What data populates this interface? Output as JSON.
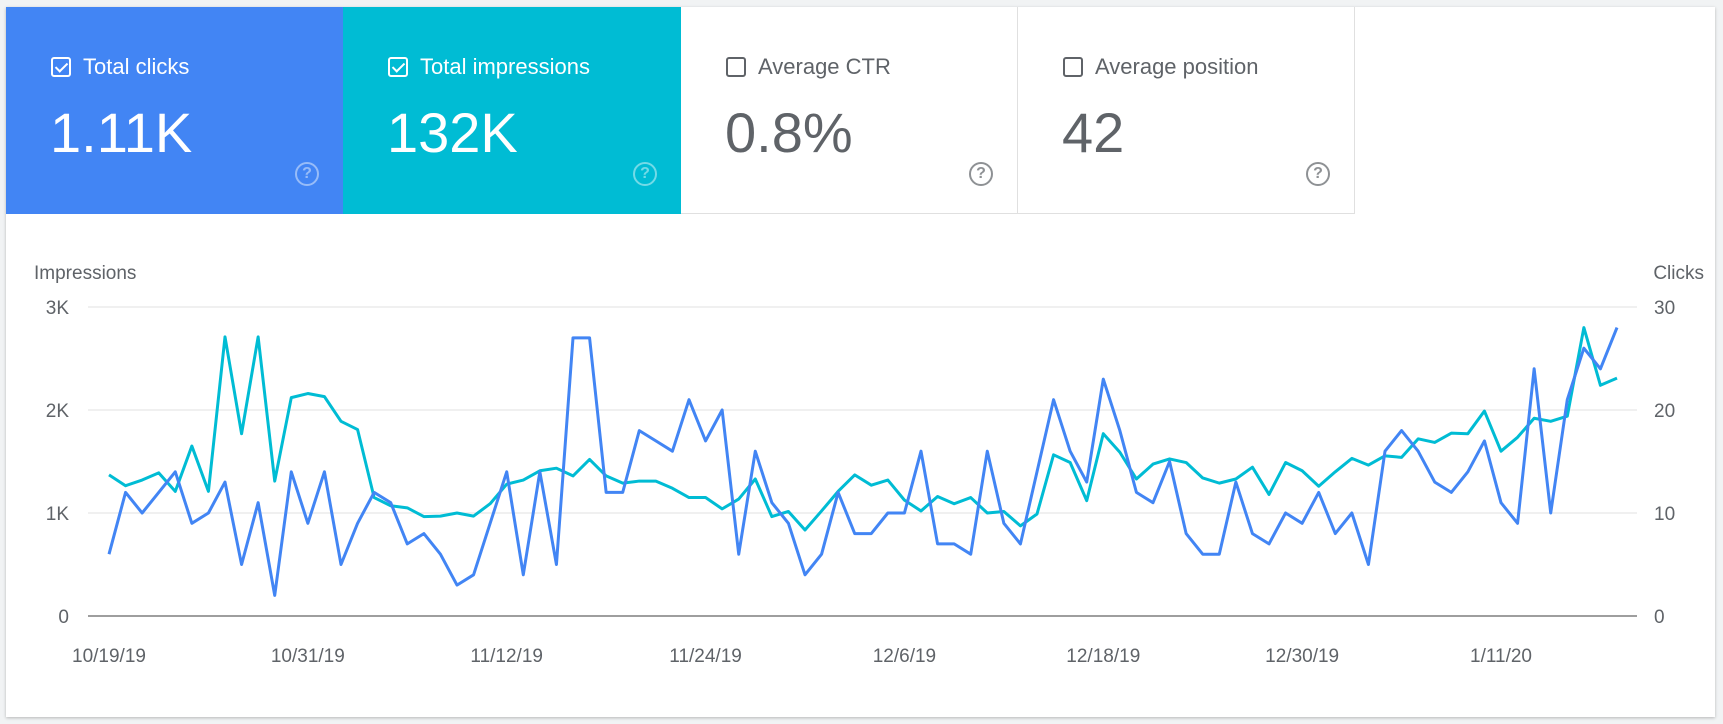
{
  "metrics": [
    {
      "label": "Total clicks",
      "value": "1.11K",
      "checked": true,
      "color": "#4285f4"
    },
    {
      "label": "Total impressions",
      "value": "132K",
      "checked": true,
      "color": "#00bcd4"
    },
    {
      "label": "Average CTR",
      "value": "0.8%",
      "checked": false
    },
    {
      "label": "Average position",
      "value": "42",
      "checked": false
    }
  ],
  "chart_data": {
    "type": "line",
    "left_axis": {
      "title": "Impressions",
      "ticks": [
        "0",
        "1K",
        "2K",
        "3K"
      ],
      "range": [
        0,
        3000
      ]
    },
    "right_axis": {
      "title": "Clicks",
      "ticks": [
        "0",
        "10",
        "20",
        "30"
      ],
      "range": [
        0,
        30
      ]
    },
    "x_tick_labels": [
      "10/19/19",
      "10/31/19",
      "11/12/19",
      "11/24/19",
      "12/6/19",
      "12/18/19",
      "12/30/19",
      "1/11/20"
    ],
    "x_start": "10/19/19",
    "x_end": "1/18/20",
    "grid": true,
    "series": [
      {
        "name": "Impressions",
        "axis": "left",
        "color": "#00bcd4",
        "values": [
          1370,
          1265,
          1320,
          1390,
          1210,
          1650,
          1210,
          2710,
          1770,
          2710,
          1310,
          2120,
          2160,
          2130,
          1890,
          1810,
          1150,
          1070,
          1050,
          965,
          970,
          1000,
          970,
          1090,
          1280,
          1320,
          1410,
          1435,
          1360,
          1520,
          1360,
          1290,
          1310,
          1310,
          1240,
          1150,
          1150,
          1040,
          1135,
          1330,
          965,
          1015,
          835,
          1020,
          1210,
          1370,
          1270,
          1320,
          1125,
          1020,
          1160,
          1090,
          1150,
          1000,
          1015,
          875,
          990,
          1565,
          1490,
          1120,
          1770,
          1590,
          1330,
          1475,
          1525,
          1490,
          1340,
          1290,
          1330,
          1445,
          1180,
          1490,
          1410,
          1260,
          1400,
          1530,
          1465,
          1555,
          1540,
          1720,
          1685,
          1775,
          1770,
          1990,
          1600,
          1735,
          1920,
          1890,
          1940,
          2800,
          2240,
          2310
        ]
      },
      {
        "name": "Clicks",
        "axis": "right",
        "color": "#4285f4",
        "values": [
          6,
          12,
          10,
          12,
          14,
          9,
          10,
          13,
          5,
          11,
          2,
          14,
          9,
          14,
          5,
          9,
          12,
          11,
          7,
          8,
          6,
          3,
          4,
          9,
          14,
          4,
          14,
          5,
          27,
          27,
          12,
          12,
          18,
          17,
          16,
          21,
          17,
          20,
          6,
          16,
          11,
          9,
          4,
          6,
          12,
          8,
          8,
          10,
          10,
          16,
          7,
          7,
          6,
          16,
          9,
          7,
          14,
          21,
          16,
          13,
          23,
          18,
          12,
          11,
          15,
          8,
          6,
          6,
          13,
          8,
          7,
          10,
          9,
          12,
          8,
          10,
          5,
          16,
          18,
          16,
          13,
          12,
          14,
          17,
          11,
          9,
          24,
          10,
          21,
          26,
          24,
          28
        ]
      }
    ]
  }
}
